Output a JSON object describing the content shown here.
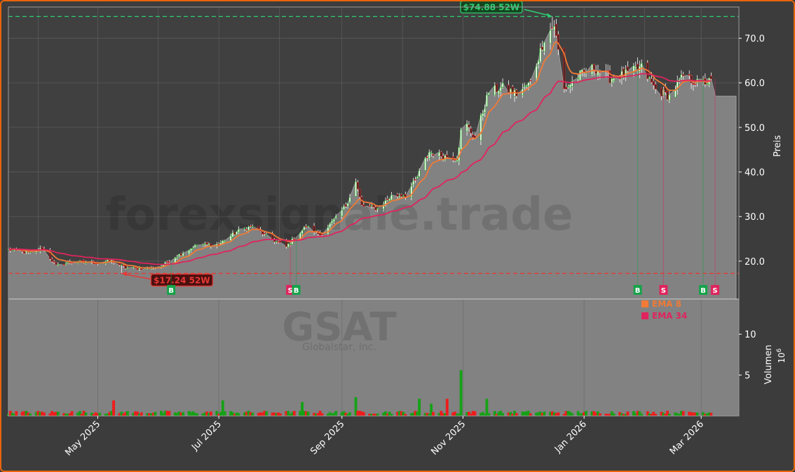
{
  "chart_data": [
    {
      "type": "candlestick",
      "ticker": "GSAT",
      "company": "Globalstar, Inc.",
      "watermark": "forexsignale.trade",
      "ylabel": "Preis",
      "ylim": [
        11.5,
        77
      ],
      "yticks": [
        20.0,
        30.0,
        40.0,
        50.0,
        60.0,
        70.0
      ],
      "x_range": [
        "2025-03-17",
        "2026-03-20"
      ],
      "x_tick_labels": [
        {
          "date": "2025-05-01",
          "label": "May 2025"
        },
        {
          "date": "2025-07-01",
          "label": "Jul 2025"
        },
        {
          "date": "2025-09-01",
          "label": "Sep 2025"
        },
        {
          "date": "2025-11-01",
          "label": "Nov 2025"
        },
        {
          "date": "2026-01-01",
          "label": "Jan 2026"
        },
        {
          "date": "2026-03-01",
          "label": "Mar 2026"
        }
      ],
      "close_anchors": [
        [
          "2025-03-17",
          22.6
        ],
        [
          "2025-03-28",
          21.8
        ],
        [
          "2025-04-03",
          22.9
        ],
        [
          "2025-04-10",
          19.0
        ],
        [
          "2025-04-18",
          19.8
        ],
        [
          "2025-05-01",
          19.6
        ],
        [
          "2025-05-08",
          20.1
        ],
        [
          "2025-05-15",
          18.5
        ],
        [
          "2025-05-26",
          18.3
        ],
        [
          "2025-06-02",
          18.9
        ],
        [
          "2025-06-10",
          21.2
        ],
        [
          "2025-06-20",
          23.6
        ],
        [
          "2025-07-01",
          23.8
        ],
        [
          "2025-07-10",
          26.6
        ],
        [
          "2025-07-18",
          27.9
        ],
        [
          "2025-07-25",
          25.6
        ],
        [
          "2025-08-04",
          23.2
        ],
        [
          "2025-08-08",
          25.2
        ],
        [
          "2025-08-14",
          27.8
        ],
        [
          "2025-08-21",
          25.9
        ],
        [
          "2025-08-29",
          29.6
        ],
        [
          "2025-09-03",
          32.5
        ],
        [
          "2025-09-08",
          37.8
        ],
        [
          "2025-09-11",
          32.4
        ],
        [
          "2025-09-19",
          31.8
        ],
        [
          "2025-09-26",
          34.6
        ],
        [
          "2025-10-03",
          34.9
        ],
        [
          "2025-10-08",
          38.0
        ],
        [
          "2025-10-15",
          44.5
        ],
        [
          "2025-10-22",
          43.6
        ],
        [
          "2025-10-29",
          43.2
        ],
        [
          "2025-11-01",
          52.0
        ],
        [
          "2025-11-07",
          47.5
        ],
        [
          "2025-11-14",
          58.0
        ],
        [
          "2025-11-21",
          59.0
        ],
        [
          "2025-11-28",
          57.5
        ],
        [
          "2025-12-05",
          60.0
        ],
        [
          "2025-12-12",
          70.0
        ],
        [
          "2025-12-17",
          73.0
        ],
        [
          "2025-12-22",
          58.5
        ],
        [
          "2025-12-29",
          61.5
        ],
        [
          "2026-01-06",
          63.5
        ],
        [
          "2026-01-14",
          61.0
        ],
        [
          "2026-01-22",
          62.0
        ],
        [
          "2026-01-30",
          63.5
        ],
        [
          "2026-02-06",
          58.5
        ],
        [
          "2026-02-13",
          57.0
        ],
        [
          "2026-02-20",
          61.5
        ],
        [
          "2026-02-27",
          60.0
        ],
        [
          "2026-03-06",
          60.3
        ]
      ],
      "last_price": 57.0,
      "high_52w": {
        "value": 74.88,
        "label": "$74.88 52W",
        "date": "2025-12-16",
        "color": "#2ecc71"
      },
      "low_52w": {
        "value": 17.24,
        "label": "$17.24 52W",
        "date": "2025-05-13",
        "color": "#e53935"
      },
      "signals": [
        {
          "date": "2025-06-07",
          "type": "B"
        },
        {
          "date": "2025-08-06",
          "type": "S"
        },
        {
          "date": "2025-08-09",
          "type": "B"
        },
        {
          "date": "2026-01-28",
          "type": "B"
        },
        {
          "date": "2026-02-10",
          "type": "S"
        },
        {
          "date": "2026-03-02",
          "type": "B"
        },
        {
          "date": "2026-03-08",
          "type": "S"
        }
      ],
      "legend": [
        {
          "name": "EMA 8",
          "color": "#f07a36"
        },
        {
          "name": "EMA 34",
          "color": "#e0245e"
        }
      ],
      "series": [
        {
          "name": "EMA 8",
          "period": 8,
          "color": "#f07a36"
        },
        {
          "name": "EMA 34",
          "period": 34,
          "color": "#e0245e"
        }
      ],
      "colors": {
        "up": "#16a116",
        "down": "#ee1c1c",
        "area": "#828282",
        "text": "#ffffff",
        "grid": "#5a5a5a"
      }
    },
    {
      "type": "bar",
      "ylabel": "Volumen",
      "yexp": "10",
      "yexp_power": "6",
      "yticks": [
        5,
        10
      ],
      "ylim": [
        0,
        14.3
      ],
      "typical_volume_millions": 0.45,
      "volume_spikes": [
        [
          "2025-05-09",
          1.9
        ],
        [
          "2025-07-03",
          1.9
        ],
        [
          "2025-08-12",
          1.7
        ],
        [
          "2025-09-06",
          4.2
        ],
        [
          "2025-09-07",
          3.8
        ],
        [
          "2025-09-08",
          2.3
        ],
        [
          "2025-10-10",
          2.1
        ],
        [
          "2025-10-16",
          1.5
        ],
        [
          "2025-10-24",
          2.1
        ],
        [
          "2025-10-31",
          5.6
        ],
        [
          "2025-11-01",
          2.8
        ],
        [
          "2025-11-08",
          2.0
        ],
        [
          "2025-11-13",
          2.1
        ],
        [
          "2025-12-13",
          1.4
        ],
        [
          "2026-01-25",
          1.2
        ],
        [
          "2026-03-01",
          1.0
        ]
      ]
    }
  ]
}
